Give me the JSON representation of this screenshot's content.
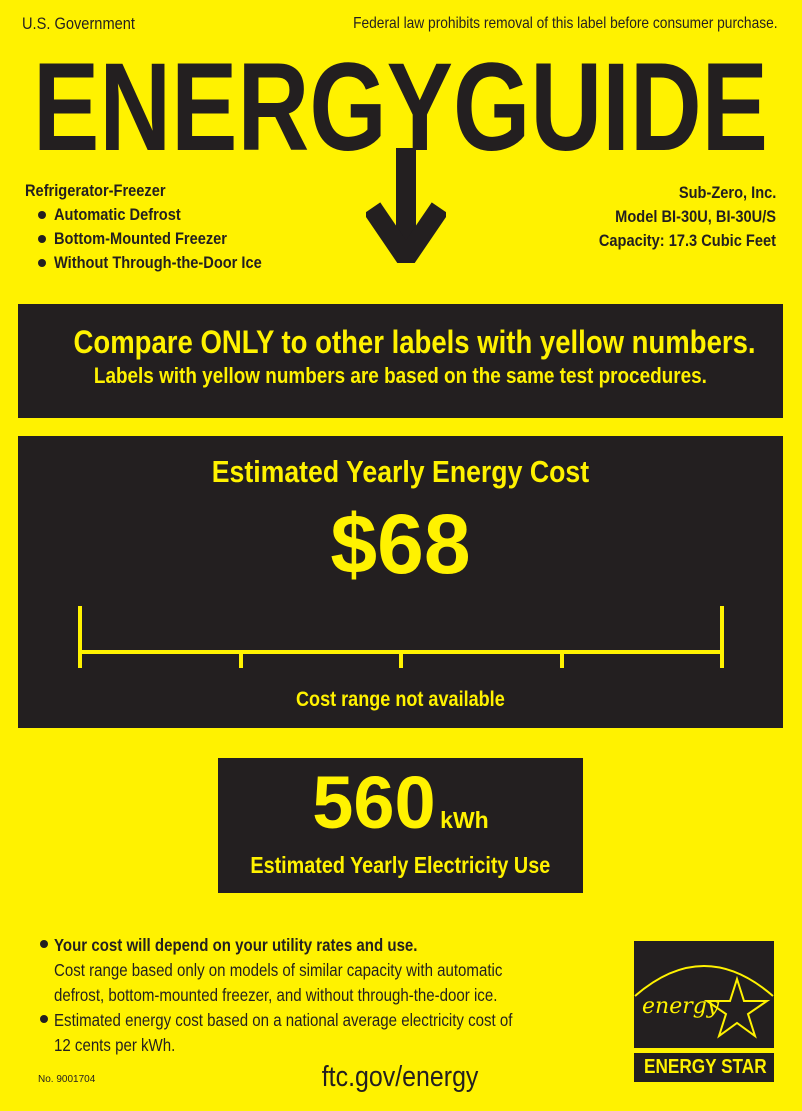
{
  "header": {
    "issuer": "U.S. Government",
    "notice": "Federal law prohibits removal of this label before consumer purchase.",
    "title": "ENERGYGUIDE"
  },
  "product": {
    "type": "Refrigerator-Freezer",
    "features": [
      "Automatic Defrost",
      "Bottom-Mounted Freezer",
      "Without Through-the-Door Ice"
    ],
    "manufacturer": "Sub-Zero, Inc.",
    "model": "Model BI-30U, BI-30U/S",
    "capacity": "Capacity: 17.3 Cubic Feet"
  },
  "compare": {
    "line1": "Compare ONLY to other labels with yellow numbers.",
    "line2": "Labels with yellow numbers are based on the same test procedures."
  },
  "cost": {
    "heading": "Estimated Yearly Energy Cost",
    "value": "$68",
    "range_note": "Cost range not available"
  },
  "electricity": {
    "value": "560",
    "unit": "kWh",
    "label": "Estimated Yearly Electricity Use"
  },
  "notes": {
    "note1_bold": "Your cost will depend on your utility rates and use.",
    "note1_line2": "Cost range based only on models of similar capacity with automatic",
    "note1_line3": "defrost, bottom-mounted freezer, and without through-the-door ice.",
    "note2_line1": "Estimated energy cost based on a national average electricity cost of",
    "note2_line2": "12 cents per kWh."
  },
  "footer": {
    "label_number": "No. 9001704",
    "website": "ftc.gov/energy"
  },
  "energy_star": {
    "script": "energy",
    "label": "ENERGY STAR"
  },
  "colors": {
    "yellow": "#fff200",
    "dark": "#231f20"
  }
}
